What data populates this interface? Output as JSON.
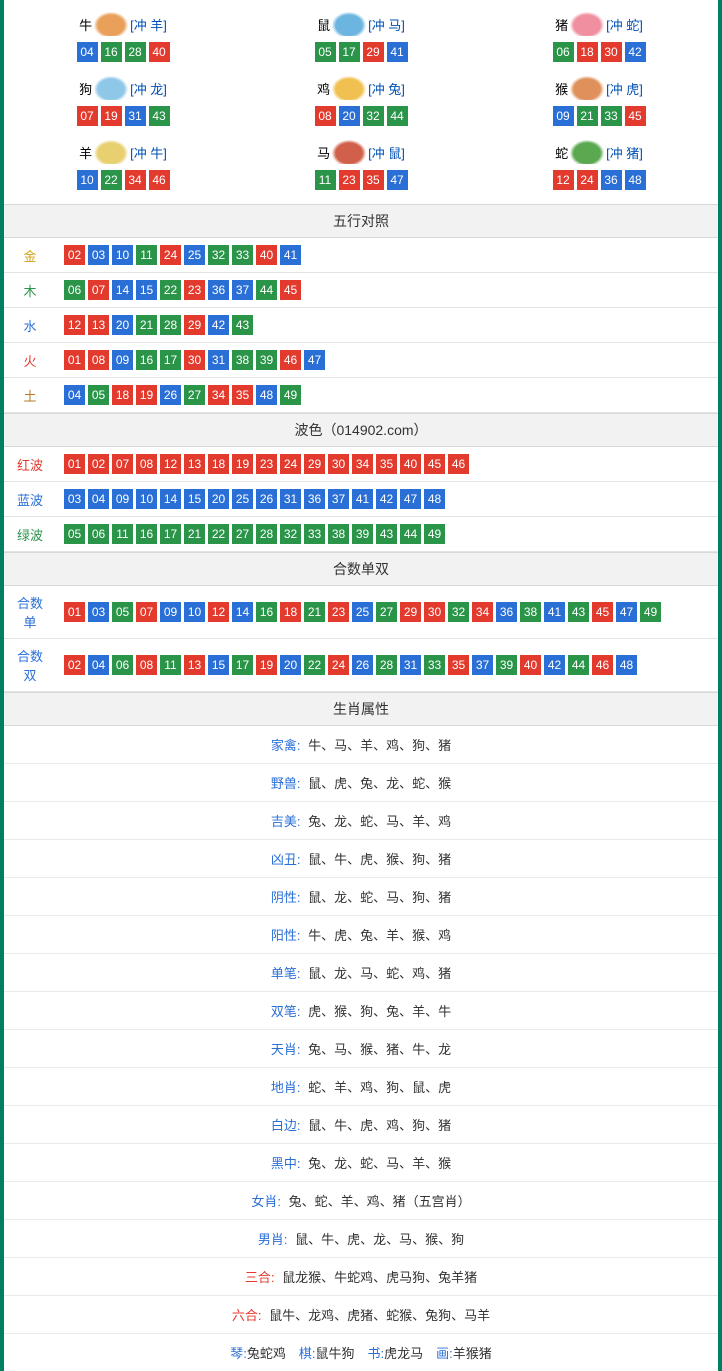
{
  "colors": {
    "red": "#e33a2e",
    "blue": "#2a6fd6",
    "green": "#2a9548",
    "border": "#008060"
  },
  "zodiac": [
    {
      "name": "牛",
      "clash": "[冲 羊]",
      "icon_bg": "#e8a05a",
      "nums": [
        {
          "v": "04",
          "c": "blue"
        },
        {
          "v": "16",
          "c": "green"
        },
        {
          "v": "28",
          "c": "green"
        },
        {
          "v": "40",
          "c": "red"
        }
      ]
    },
    {
      "name": "鼠",
      "clash": "[冲 马]",
      "icon_bg": "#6bb5e0",
      "nums": [
        {
          "v": "05",
          "c": "green"
        },
        {
          "v": "17",
          "c": "green"
        },
        {
          "v": "29",
          "c": "red"
        },
        {
          "v": "41",
          "c": "blue"
        }
      ]
    },
    {
      "name": "猪",
      "clash": "[冲 蛇]",
      "icon_bg": "#f08fa0",
      "nums": [
        {
          "v": "06",
          "c": "green"
        },
        {
          "v": "18",
          "c": "red"
        },
        {
          "v": "30",
          "c": "red"
        },
        {
          "v": "42",
          "c": "blue"
        }
      ]
    },
    {
      "name": "狗",
      "clash": "[冲 龙]",
      "icon_bg": "#8fc7e8",
      "nums": [
        {
          "v": "07",
          "c": "red"
        },
        {
          "v": "19",
          "c": "red"
        },
        {
          "v": "31",
          "c": "blue"
        },
        {
          "v": "43",
          "c": "green"
        }
      ]
    },
    {
      "name": "鸡",
      "clash": "[冲 兔]",
      "icon_bg": "#f0c050",
      "nums": [
        {
          "v": "08",
          "c": "red"
        },
        {
          "v": "20",
          "c": "blue"
        },
        {
          "v": "32",
          "c": "green"
        },
        {
          "v": "44",
          "c": "green"
        }
      ]
    },
    {
      "name": "猴",
      "clash": "[冲 虎]",
      "icon_bg": "#e0905a",
      "nums": [
        {
          "v": "09",
          "c": "blue"
        },
        {
          "v": "21",
          "c": "green"
        },
        {
          "v": "33",
          "c": "green"
        },
        {
          "v": "45",
          "c": "red"
        }
      ]
    },
    {
      "name": "羊",
      "clash": "[冲 牛]",
      "icon_bg": "#e8d070",
      "nums": [
        {
          "v": "10",
          "c": "blue"
        },
        {
          "v": "22",
          "c": "green"
        },
        {
          "v": "34",
          "c": "red"
        },
        {
          "v": "46",
          "c": "red"
        }
      ]
    },
    {
      "name": "马",
      "clash": "[冲 鼠]",
      "icon_bg": "#d0604a",
      "nums": [
        {
          "v": "11",
          "c": "green"
        },
        {
          "v": "23",
          "c": "red"
        },
        {
          "v": "35",
          "c": "red"
        },
        {
          "v": "47",
          "c": "blue"
        }
      ]
    },
    {
      "name": "蛇",
      "clash": "[冲 猪]",
      "icon_bg": "#5aa850",
      "nums": [
        {
          "v": "12",
          "c": "red"
        },
        {
          "v": "24",
          "c": "red"
        },
        {
          "v": "36",
          "c": "blue"
        },
        {
          "v": "48",
          "c": "blue"
        }
      ]
    }
  ],
  "sections": {
    "wuxing": {
      "title": "五行对照",
      "rows": [
        {
          "label": "金",
          "label_color": "#d4a017",
          "nums": [
            {
              "v": "02",
              "c": "red"
            },
            {
              "v": "03",
              "c": "blue"
            },
            {
              "v": "10",
              "c": "blue"
            },
            {
              "v": "11",
              "c": "green"
            },
            {
              "v": "24",
              "c": "red"
            },
            {
              "v": "25",
              "c": "blue"
            },
            {
              "v": "32",
              "c": "green"
            },
            {
              "v": "33",
              "c": "green"
            },
            {
              "v": "40",
              "c": "red"
            },
            {
              "v": "41",
              "c": "blue"
            }
          ]
        },
        {
          "label": "木",
          "label_color": "#2a9548",
          "nums": [
            {
              "v": "06",
              "c": "green"
            },
            {
              "v": "07",
              "c": "red"
            },
            {
              "v": "14",
              "c": "blue"
            },
            {
              "v": "15",
              "c": "blue"
            },
            {
              "v": "22",
              "c": "green"
            },
            {
              "v": "23",
              "c": "red"
            },
            {
              "v": "36",
              "c": "blue"
            },
            {
              "v": "37",
              "c": "blue"
            },
            {
              "v": "44",
              "c": "green"
            },
            {
              "v": "45",
              "c": "red"
            }
          ]
        },
        {
          "label": "水",
          "label_color": "#2a6fd6",
          "nums": [
            {
              "v": "12",
              "c": "red"
            },
            {
              "v": "13",
              "c": "red"
            },
            {
              "v": "20",
              "c": "blue"
            },
            {
              "v": "21",
              "c": "green"
            },
            {
              "v": "28",
              "c": "green"
            },
            {
              "v": "29",
              "c": "red"
            },
            {
              "v": "42",
              "c": "blue"
            },
            {
              "v": "43",
              "c": "green"
            }
          ]
        },
        {
          "label": "火",
          "label_color": "#e33a2e",
          "nums": [
            {
              "v": "01",
              "c": "red"
            },
            {
              "v": "08",
              "c": "red"
            },
            {
              "v": "09",
              "c": "blue"
            },
            {
              "v": "16",
              "c": "green"
            },
            {
              "v": "17",
              "c": "green"
            },
            {
              "v": "30",
              "c": "red"
            },
            {
              "v": "31",
              "c": "blue"
            },
            {
              "v": "38",
              "c": "green"
            },
            {
              "v": "39",
              "c": "green"
            },
            {
              "v": "46",
              "c": "red"
            },
            {
              "v": "47",
              "c": "blue"
            }
          ]
        },
        {
          "label": "土",
          "label_color": "#b87a2a",
          "nums": [
            {
              "v": "04",
              "c": "blue"
            },
            {
              "v": "05",
              "c": "green"
            },
            {
              "v": "18",
              "c": "red"
            },
            {
              "v": "19",
              "c": "red"
            },
            {
              "v": "26",
              "c": "blue"
            },
            {
              "v": "27",
              "c": "green"
            },
            {
              "v": "34",
              "c": "red"
            },
            {
              "v": "35",
              "c": "red"
            },
            {
              "v": "48",
              "c": "blue"
            },
            {
              "v": "49",
              "c": "green"
            }
          ]
        }
      ]
    },
    "bose": {
      "title": "波色（014902.com）",
      "rows": [
        {
          "label": "红波",
          "label_color": "#e33a2e",
          "nums": [
            {
              "v": "01",
              "c": "red"
            },
            {
              "v": "02",
              "c": "red"
            },
            {
              "v": "07",
              "c": "red"
            },
            {
              "v": "08",
              "c": "red"
            },
            {
              "v": "12",
              "c": "red"
            },
            {
              "v": "13",
              "c": "red"
            },
            {
              "v": "18",
              "c": "red"
            },
            {
              "v": "19",
              "c": "red"
            },
            {
              "v": "23",
              "c": "red"
            },
            {
              "v": "24",
              "c": "red"
            },
            {
              "v": "29",
              "c": "red"
            },
            {
              "v": "30",
              "c": "red"
            },
            {
              "v": "34",
              "c": "red"
            },
            {
              "v": "35",
              "c": "red"
            },
            {
              "v": "40",
              "c": "red"
            },
            {
              "v": "45",
              "c": "red"
            },
            {
              "v": "46",
              "c": "red"
            }
          ]
        },
        {
          "label": "蓝波",
          "label_color": "#2a6fd6",
          "nums": [
            {
              "v": "03",
              "c": "blue"
            },
            {
              "v": "04",
              "c": "blue"
            },
            {
              "v": "09",
              "c": "blue"
            },
            {
              "v": "10",
              "c": "blue"
            },
            {
              "v": "14",
              "c": "blue"
            },
            {
              "v": "15",
              "c": "blue"
            },
            {
              "v": "20",
              "c": "blue"
            },
            {
              "v": "25",
              "c": "blue"
            },
            {
              "v": "26",
              "c": "blue"
            },
            {
              "v": "31",
              "c": "blue"
            },
            {
              "v": "36",
              "c": "blue"
            },
            {
              "v": "37",
              "c": "blue"
            },
            {
              "v": "41",
              "c": "blue"
            },
            {
              "v": "42",
              "c": "blue"
            },
            {
              "v": "47",
              "c": "blue"
            },
            {
              "v": "48",
              "c": "blue"
            }
          ]
        },
        {
          "label": "绿波",
          "label_color": "#2a9548",
          "nums": [
            {
              "v": "05",
              "c": "green"
            },
            {
              "v": "06",
              "c": "green"
            },
            {
              "v": "11",
              "c": "green"
            },
            {
              "v": "16",
              "c": "green"
            },
            {
              "v": "17",
              "c": "green"
            },
            {
              "v": "21",
              "c": "green"
            },
            {
              "v": "22",
              "c": "green"
            },
            {
              "v": "27",
              "c": "green"
            },
            {
              "v": "28",
              "c": "green"
            },
            {
              "v": "32",
              "c": "green"
            },
            {
              "v": "33",
              "c": "green"
            },
            {
              "v": "38",
              "c": "green"
            },
            {
              "v": "39",
              "c": "green"
            },
            {
              "v": "43",
              "c": "green"
            },
            {
              "v": "44",
              "c": "green"
            },
            {
              "v": "49",
              "c": "green"
            }
          ]
        }
      ]
    },
    "heshu": {
      "title": "合数单双",
      "rows": [
        {
          "label": "合数单",
          "label_color": "#2a6fd6",
          "nums": [
            {
              "v": "01",
              "c": "red"
            },
            {
              "v": "03",
              "c": "blue"
            },
            {
              "v": "05",
              "c": "green"
            },
            {
              "v": "07",
              "c": "red"
            },
            {
              "v": "09",
              "c": "blue"
            },
            {
              "v": "10",
              "c": "blue"
            },
            {
              "v": "12",
              "c": "red"
            },
            {
              "v": "14",
              "c": "blue"
            },
            {
              "v": "16",
              "c": "green"
            },
            {
              "v": "18",
              "c": "red"
            },
            {
              "v": "21",
              "c": "green"
            },
            {
              "v": "23",
              "c": "red"
            },
            {
              "v": "25",
              "c": "blue"
            },
            {
              "v": "27",
              "c": "green"
            },
            {
              "v": "29",
              "c": "red"
            },
            {
              "v": "30",
              "c": "red"
            },
            {
              "v": "32",
              "c": "green"
            },
            {
              "v": "34",
              "c": "red"
            },
            {
              "v": "36",
              "c": "blue"
            },
            {
              "v": "38",
              "c": "green"
            },
            {
              "v": "41",
              "c": "blue"
            },
            {
              "v": "43",
              "c": "green"
            },
            {
              "v": "45",
              "c": "red"
            },
            {
              "v": "47",
              "c": "blue"
            },
            {
              "v": "49",
              "c": "green"
            }
          ]
        },
        {
          "label": "合数双",
          "label_color": "#2a6fd6",
          "nums": [
            {
              "v": "02",
              "c": "red"
            },
            {
              "v": "04",
              "c": "blue"
            },
            {
              "v": "06",
              "c": "green"
            },
            {
              "v": "08",
              "c": "red"
            },
            {
              "v": "11",
              "c": "green"
            },
            {
              "v": "13",
              "c": "red"
            },
            {
              "v": "15",
              "c": "blue"
            },
            {
              "v": "17",
              "c": "green"
            },
            {
              "v": "19",
              "c": "red"
            },
            {
              "v": "20",
              "c": "blue"
            },
            {
              "v": "22",
              "c": "green"
            },
            {
              "v": "24",
              "c": "red"
            },
            {
              "v": "26",
              "c": "blue"
            },
            {
              "v": "28",
              "c": "green"
            },
            {
              "v": "31",
              "c": "blue"
            },
            {
              "v": "33",
              "c": "green"
            },
            {
              "v": "35",
              "c": "red"
            },
            {
              "v": "37",
              "c": "blue"
            },
            {
              "v": "39",
              "c": "green"
            },
            {
              "v": "40",
              "c": "red"
            },
            {
              "v": "42",
              "c": "blue"
            },
            {
              "v": "44",
              "c": "green"
            },
            {
              "v": "46",
              "c": "red"
            },
            {
              "v": "48",
              "c": "blue"
            }
          ]
        }
      ]
    },
    "shengxiao": {
      "title": "生肖属性",
      "rows": [
        {
          "label": "家禽:",
          "label_color": "#2a6fd6",
          "text": "牛、马、羊、鸡、狗、猪"
        },
        {
          "label": "野兽:",
          "label_color": "#2a6fd6",
          "text": "鼠、虎、兔、龙、蛇、猴"
        },
        {
          "label": "吉美:",
          "label_color": "#2a6fd6",
          "text": "兔、龙、蛇、马、羊、鸡"
        },
        {
          "label": "凶丑:",
          "label_color": "#2a6fd6",
          "text": "鼠、牛、虎、猴、狗、猪"
        },
        {
          "label": "阴性:",
          "label_color": "#2a6fd6",
          "text": "鼠、龙、蛇、马、狗、猪"
        },
        {
          "label": "阳性:",
          "label_color": "#2a6fd6",
          "text": "牛、虎、兔、羊、猴、鸡"
        },
        {
          "label": "单笔:",
          "label_color": "#2a6fd6",
          "text": "鼠、龙、马、蛇、鸡、猪"
        },
        {
          "label": "双笔:",
          "label_color": "#2a6fd6",
          "text": "虎、猴、狗、兔、羊、牛"
        },
        {
          "label": "天肖:",
          "label_color": "#2a6fd6",
          "text": "兔、马、猴、猪、牛、龙"
        },
        {
          "label": "地肖:",
          "label_color": "#2a6fd6",
          "text": "蛇、羊、鸡、狗、鼠、虎"
        },
        {
          "label": "白边:",
          "label_color": "#2a6fd6",
          "text": "鼠、牛、虎、鸡、狗、猪"
        },
        {
          "label": "黑中:",
          "label_color": "#2a6fd6",
          "text": "兔、龙、蛇、马、羊、猴"
        },
        {
          "label": "女肖:",
          "label_color": "#2a6fd6",
          "text": "兔、蛇、羊、鸡、猪（五宫肖）"
        },
        {
          "label": "男肖:",
          "label_color": "#2a6fd6",
          "text": "鼠、牛、虎、龙、马、猴、狗"
        },
        {
          "label": "三合:",
          "label_color": "#e33a2e",
          "text": "鼠龙猴、牛蛇鸡、虎马狗、兔羊猪"
        },
        {
          "label": "六合:",
          "label_color": "#e33a2e",
          "text": "鼠牛、龙鸡、虎猪、蛇猴、兔狗、马羊"
        }
      ],
      "footer_parts": [
        {
          "k": "琴:",
          "v": "兔蛇鸡"
        },
        {
          "k": "棋:",
          "v": "鼠牛狗"
        },
        {
          "k": "书:",
          "v": "虎龙马"
        },
        {
          "k": "画:",
          "v": "羊猴猪"
        }
      ]
    }
  }
}
